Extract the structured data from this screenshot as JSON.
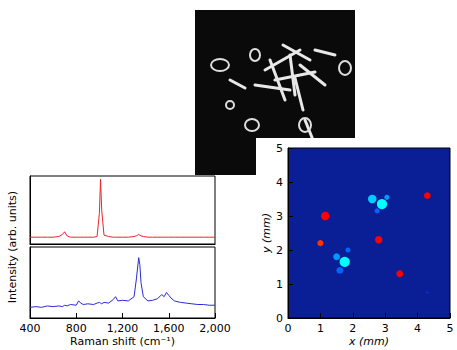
{
  "chart_data": [
    {
      "type": "line",
      "xlabel": "Raman shift (cm⁻¹)",
      "ylabel": "Intensity (arb. units)",
      "xlim": [
        400,
        2000
      ],
      "xticks": [
        400,
        800,
        1200,
        1600,
        2000
      ],
      "ylim": [
        0,
        100
      ],
      "tick_labels": "x",
      "grid": false,
      "x": [
        400,
        450,
        500,
        550,
        600,
        650,
        680,
        700,
        720,
        750,
        800,
        820,
        840,
        860,
        900,
        950,
        980,
        1000,
        1010,
        1020,
        1040,
        1080,
        1120,
        1140,
        1160,
        1200,
        1250,
        1300,
        1320,
        1340,
        1350,
        1360,
        1380,
        1420,
        1460,
        1500,
        1540,
        1560,
        1580,
        1600,
        1620,
        1650,
        1700,
        1750,
        1800,
        1850,
        1900,
        1950,
        2000
      ],
      "series": [
        {
          "color": "#e8262a",
          "values": [
            10,
            10,
            10,
            10,
            10,
            11,
            14,
            18,
            12,
            10,
            10,
            10,
            10,
            10,
            10,
            10,
            11,
            45,
            95,
            50,
            13,
            11,
            10,
            10,
            10,
            10,
            10,
            11,
            12,
            14,
            13,
            12,
            11,
            10,
            10,
            10,
            10,
            10,
            10,
            10,
            10,
            10,
            10,
            10,
            10,
            10,
            10,
            10,
            10
          ]
        },
        {
          "color": "#2b2bd6",
          "values": [
            15,
            16,
            15,
            17,
            16,
            17,
            16,
            18,
            17,
            19,
            18,
            24,
            21,
            19,
            20,
            19,
            21,
            22,
            21,
            20,
            22,
            21,
            26,
            30,
            24,
            25,
            24,
            30,
            55,
            85,
            75,
            50,
            30,
            24,
            25,
            27,
            33,
            30,
            36,
            32,
            28,
            24,
            22,
            21,
            20,
            19,
            19,
            18,
            18
          ]
        }
      ]
    },
    {
      "type": "scatter",
      "xlabel": "x (mm)",
      "ylabel": "y (mm)",
      "xlim": [
        0,
        5
      ],
      "ylim": [
        0,
        5
      ],
      "xticks": [
        0,
        1,
        2,
        3,
        4,
        5
      ],
      "yticks": [
        0,
        1,
        2,
        3,
        4,
        5
      ],
      "grid": false,
      "x": [
        1.15,
        1.0,
        2.8,
        3.45,
        4.3,
        2.6,
        2.9,
        3.05,
        2.75,
        1.5,
        1.75,
        1.6,
        1.85,
        4.3
      ],
      "y": [
        3.0,
        2.2,
        2.3,
        1.3,
        3.6,
        3.5,
        3.35,
        3.55,
        3.15,
        1.8,
        1.65,
        1.4,
        2.0,
        0.75
      ],
      "size": [
        0.25,
        0.18,
        0.22,
        0.2,
        0.2,
        0.25,
        0.3,
        0.15,
        0.15,
        0.2,
        0.3,
        0.2,
        0.15,
        0.06
      ],
      "intensity": [
        1,
        0.95,
        1,
        1,
        1,
        0.45,
        0.5,
        0.4,
        0.35,
        0.4,
        0.5,
        0.35,
        0.35,
        0.3
      ],
      "color_range": [
        0,
        1
      ]
    }
  ]
}
